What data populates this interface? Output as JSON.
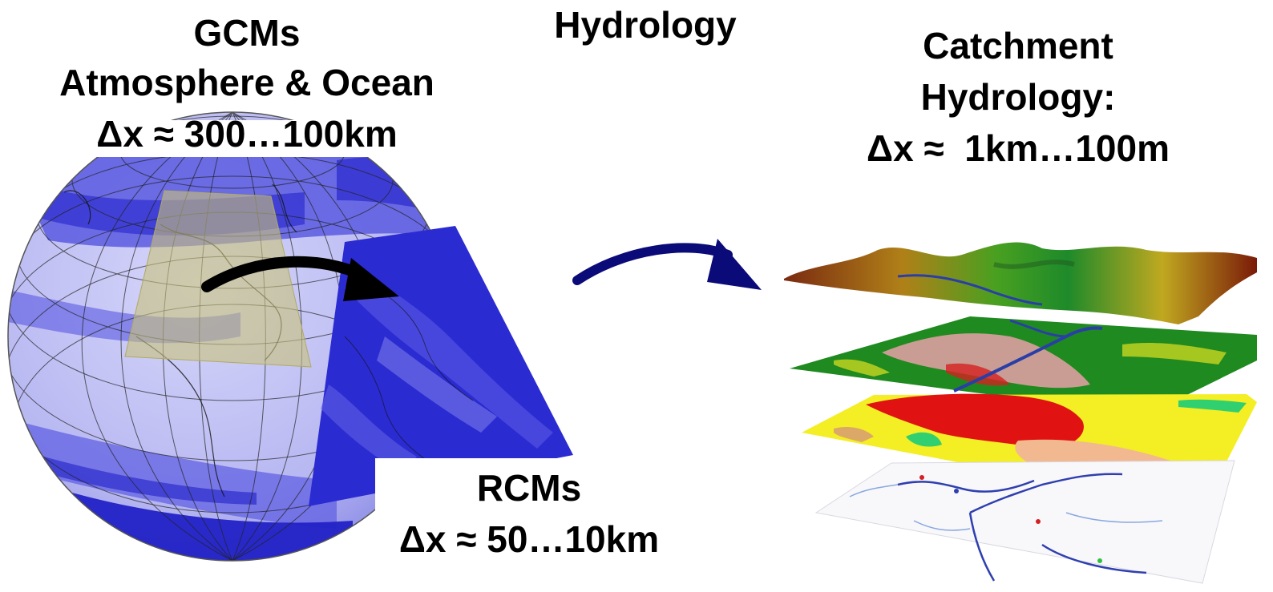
{
  "labels": {
    "gcm_title": "GCMs",
    "gcm_subtitle": "Atmosphere & Ocean",
    "gcm_resolution": "Δx ≈ 300…100km",
    "hydrology_heading": "Hydrology",
    "catchment_line1": "Catchment",
    "catchment_line2": "Hydrology:",
    "catchment_resolution": "Δx ≈  1km…100m",
    "rcm_title": "RCMs",
    "rcm_resolution": "Δx ≈ 50…10km"
  },
  "colors": {
    "globe_light": "#c9c9f7",
    "globe_mid": "#6f6fe6",
    "globe_dark": "#2525c8",
    "rcm_blue": "#2b2bd2",
    "gcm_domain_highlight": "#c8c27a",
    "arrow_black": "#000000",
    "arrow_navy": "#0a0a78",
    "layer_terrain_red": "#8b1e0a",
    "layer_landcover_green": "#1f8a1f",
    "layer_soil_yellow": "#f4ee24",
    "layer_soil_red": "#e01212",
    "river_blue": "#3838b0"
  }
}
